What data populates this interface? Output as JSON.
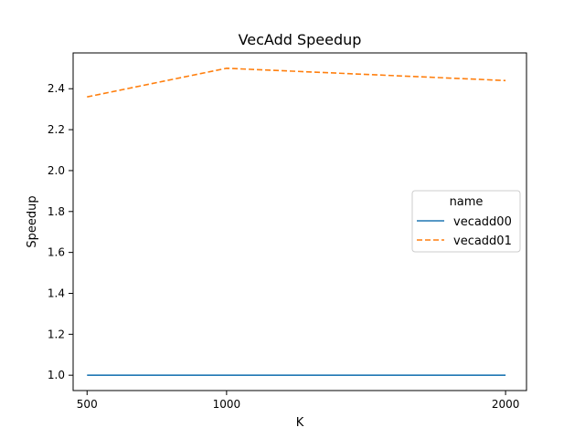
{
  "chart_data": {
    "type": "line",
    "title": "VecAdd Speedup",
    "xlabel": "K",
    "ylabel": "Speedup",
    "x": [
      500,
      1000,
      2000
    ],
    "xlim": [
      450,
      2075
    ],
    "ylim": [
      0.925,
      2.575
    ],
    "xticks": [
      500,
      1000,
      2000
    ],
    "yticks": [
      1.0,
      1.2,
      1.4,
      1.6,
      1.8,
      2.0,
      2.2,
      2.4
    ],
    "ytick_labels": [
      "1.0",
      "1.2",
      "1.4",
      "1.6",
      "1.8",
      "2.0",
      "2.2",
      "2.4"
    ],
    "grid": false,
    "legend": {
      "title": "name",
      "placement": "center-right"
    },
    "series": [
      {
        "name": "vecadd00",
        "values": [
          1.0,
          1.0,
          1.0
        ],
        "color": "#1f77b4",
        "dash": "solid"
      },
      {
        "name": "vecadd01",
        "values": [
          2.36,
          2.5,
          2.44
        ],
        "color": "#ff7f0e",
        "dash": "dashed"
      }
    ]
  }
}
